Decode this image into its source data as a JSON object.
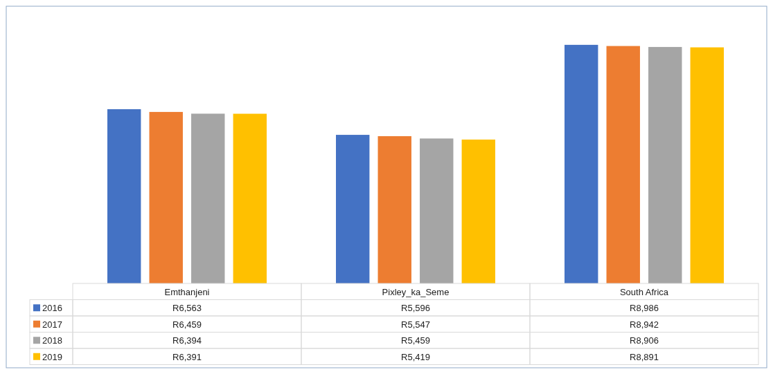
{
  "chart_data": {
    "type": "bar",
    "categories": [
      "Emthanjeni",
      "Pixley_ka_Seme",
      "South Africa"
    ],
    "legend": "bottom",
    "series": [
      {
        "name": "2016",
        "color": "#4472c4",
        "values": [
          6563,
          5596,
          8986
        ],
        "value_labels": [
          "R6,563",
          "R5,596",
          "R8,986"
        ]
      },
      {
        "name": "2017",
        "color": "#ed7d31",
        "values": [
          6459,
          5547,
          8942
        ],
        "value_labels": [
          "R6,459",
          "R5,547",
          "R8,942"
        ]
      },
      {
        "name": "2018",
        "color": "#a5a5a5",
        "values": [
          6394,
          5459,
          8906
        ],
        "value_labels": [
          "R6,394",
          "R5,459",
          "R8,906"
        ]
      },
      {
        "name": "2019",
        "color": "#ffc000",
        "values": [
          6391,
          5419,
          8891
        ],
        "value_labels": [
          "R6,391",
          "R5,419",
          "R8,891"
        ]
      }
    ]
  }
}
